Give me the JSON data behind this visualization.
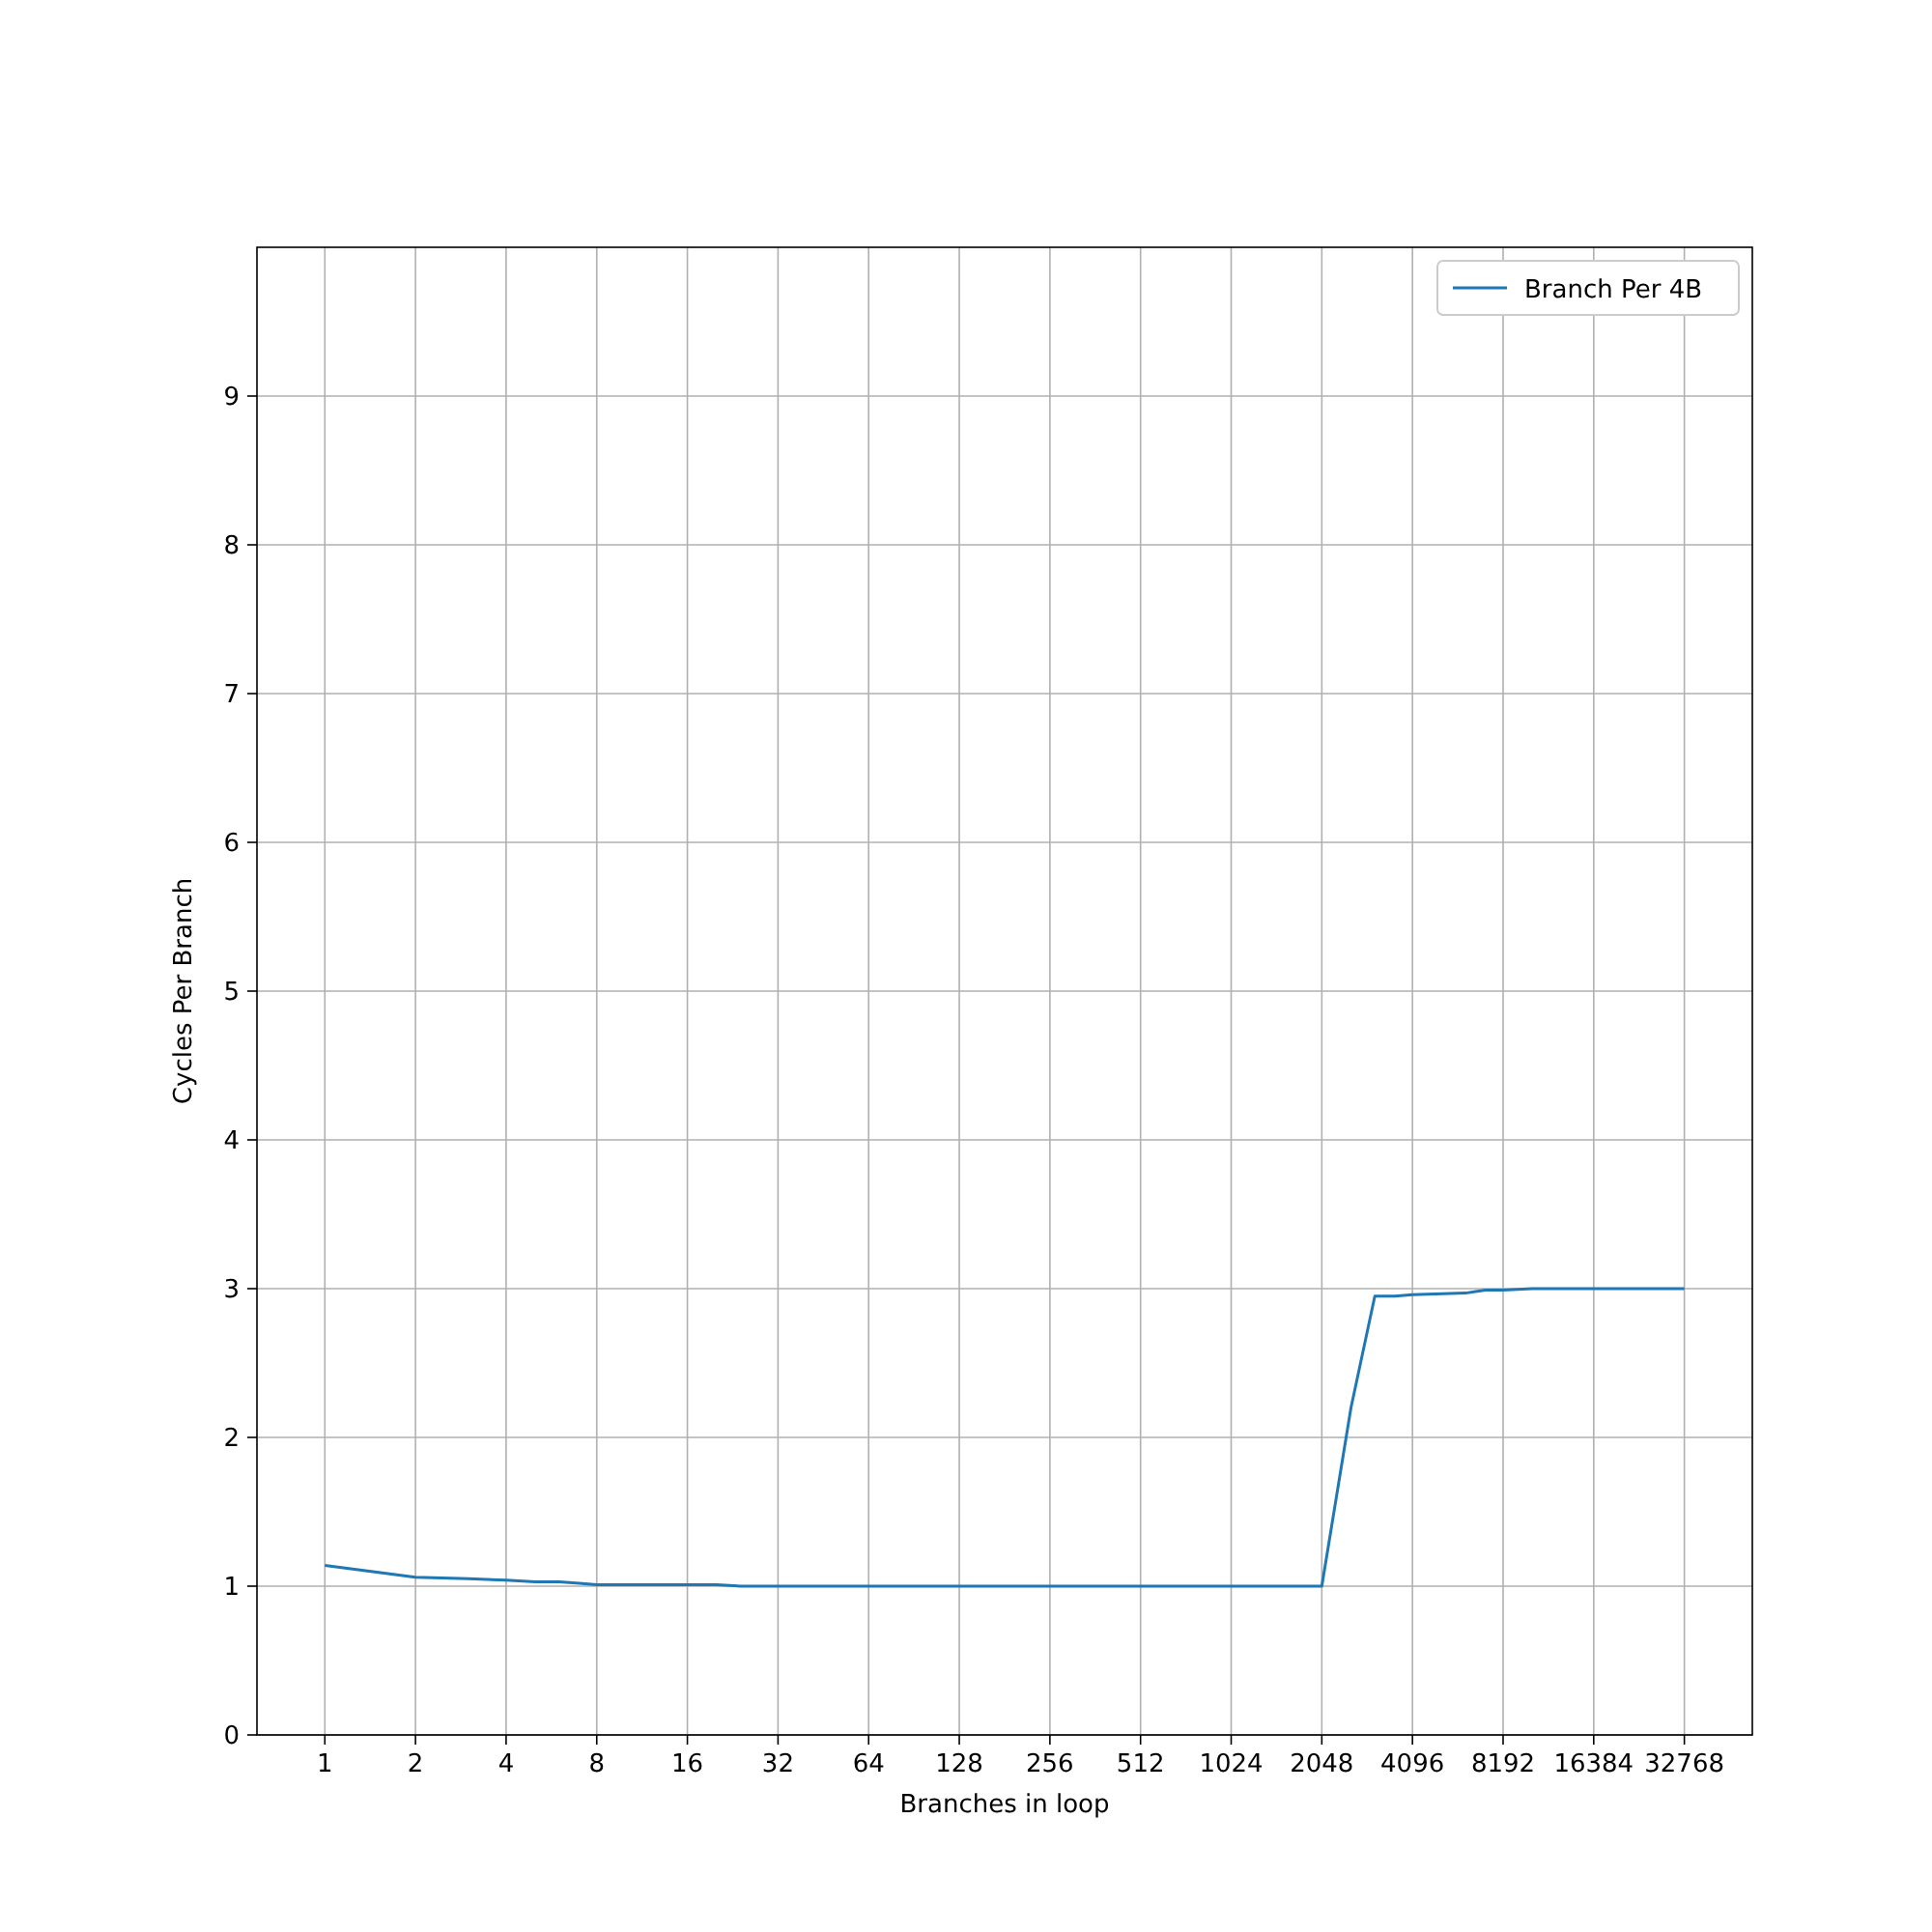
{
  "chart_data": {
    "type": "line",
    "xlabel": "Branches in loop",
    "ylabel": "Cycles Per Branch",
    "log": "x",
    "grid": true,
    "legend": "top right",
    "xlim": [
      0.595,
      55109
    ],
    "xticks": [
      1,
      2,
      4,
      8,
      16,
      32,
      64,
      128,
      256,
      512,
      1024,
      2048,
      4096,
      8192,
      16384,
      32768
    ],
    "ylim": [
      0,
      10
    ],
    "yticks": [
      0,
      1,
      2,
      3,
      4,
      5,
      6,
      7,
      8,
      9
    ],
    "series": [
      {
        "name": "Branch Per 4B",
        "color": "#1f77b4",
        "x": [
          1,
          2,
          3,
          4,
          5,
          6,
          7,
          8,
          16,
          20,
          24,
          32,
          64,
          128,
          256,
          512,
          1024,
          2048,
          2560,
          3072,
          3584,
          4096,
          6144,
          7168,
          8192,
          10240,
          16384,
          32768
        ],
        "values": [
          1.14,
          1.06,
          1.05,
          1.04,
          1.03,
          1.03,
          1.02,
          1.01,
          1.01,
          1.01,
          1.0,
          1.0,
          1.0,
          1.0,
          1.0,
          1.0,
          1.0,
          1.0,
          2.2,
          2.95,
          2.95,
          2.96,
          2.97,
          2.99,
          2.99,
          3.0,
          3.0,
          3.0
        ]
      }
    ]
  }
}
